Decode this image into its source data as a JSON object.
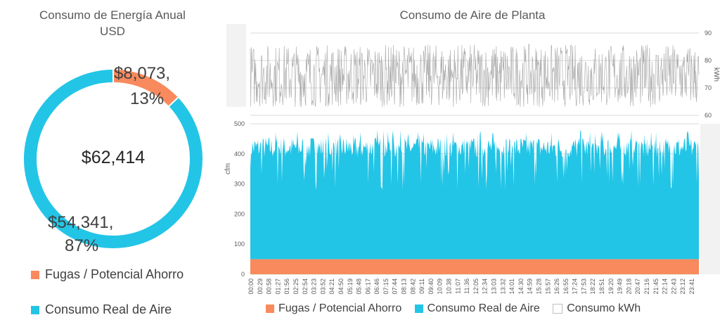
{
  "colors": {
    "leaks": "#F88A5D",
    "air": "#23C5E6",
    "kwh": "#BFBFBF",
    "grid": "#D9D9D9",
    "band": "#F2F2F2"
  },
  "chart_data": [
    {
      "type": "pie",
      "title": "Consumo de Energía Anual",
      "subtitle": "USD",
      "center_label": "$62,414",
      "slices": [
        {
          "name": "Fugas / Potencial Ahorro",
          "value": 8073,
          "percent": 13,
          "label_line1": "$8,073,",
          "label_line2": "13%"
        },
        {
          "name": "Consumo Real de Aire",
          "value": 54341,
          "percent": 87,
          "label_line1": "$54,341,",
          "label_line2": "87%"
        }
      ],
      "legend": [
        "Fugas / Potencial Ahorro",
        "Consumo Real de Aire"
      ],
      "legend_position": "bottom"
    },
    {
      "type": "area",
      "title": "Consumo de Aire de Planta",
      "ylabel": "cfm",
      "ylim": [
        0,
        500
      ],
      "yticks": [
        "0",
        "100",
        "200",
        "300",
        "400",
        "500"
      ],
      "y2label": "kWh",
      "y2lim": [
        60,
        90
      ],
      "y2ticks": [
        "60",
        "70",
        "80",
        "90"
      ],
      "xticks": [
        "00:00",
        "00:29",
        "00:58",
        "01:27",
        "01:56",
        "02:25",
        "02:54",
        "03:23",
        "03:52",
        "04:21",
        "04:50",
        "05:19",
        "05:48",
        "06:17",
        "06:46",
        "07:15",
        "07:44",
        "08:13",
        "08:42",
        "09:11",
        "09:40",
        "10:09",
        "10:38",
        "11:07",
        "11:36",
        "12:05",
        "12:34",
        "13:03",
        "13:32",
        "14:01",
        "14:30",
        "14:59",
        "15:28",
        "15:57",
        "16:26",
        "16:55",
        "17:24",
        "17:53",
        "18:22",
        "18:51",
        "19:20",
        "19:49",
        "20:18",
        "20:47",
        "21:16",
        "21:45",
        "22:14",
        "22:43",
        "23:12",
        "23:41"
      ],
      "series": [
        {
          "name": "Fugas / Potencial Ahorro",
          "baseline": 50,
          "kind": "stacked-area"
        },
        {
          "name": "Consumo Real de Aire",
          "range": [
            280,
            480
          ],
          "typical": 420,
          "kind": "stacked-area"
        },
        {
          "name": "Consumo kWh",
          "range": [
            63,
            86
          ],
          "kind": "line"
        }
      ],
      "grid": true,
      "legend": [
        "Fugas / Potencial Ahorro",
        "Consumo Real de Aire",
        "Consumo kWh"
      ],
      "legend_position": "bottom"
    }
  ]
}
